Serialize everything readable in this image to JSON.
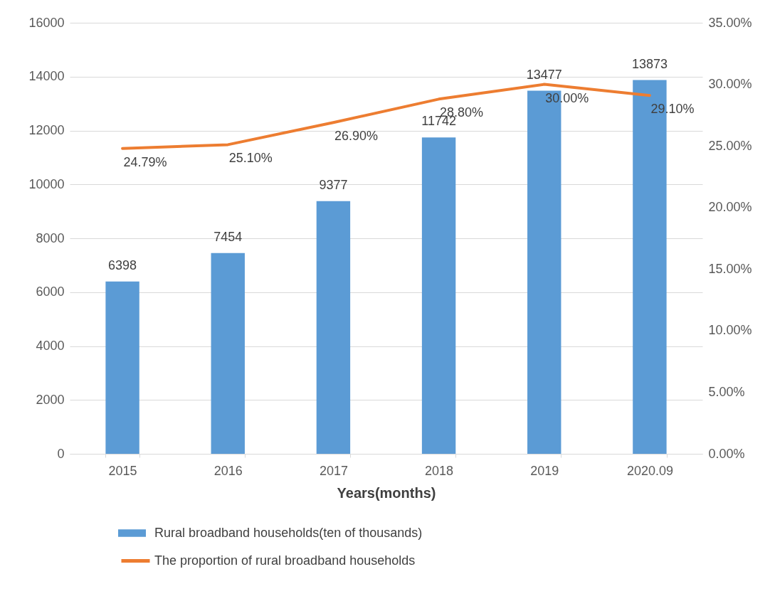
{
  "chart_data": {
    "type": "bar",
    "xlabel": "Years(months)",
    "categories": [
      "2015",
      "2016",
      "2017",
      "2018",
      "2019",
      "2020.09"
    ],
    "series": [
      {
        "name": "Rural broadband households(ten of thousands)",
        "color": "#5b9bd5",
        "values": [
          6398,
          7454,
          9377,
          11742,
          13477,
          13873
        ],
        "value_labels": [
          "6398",
          "7454",
          "9377",
          "11742",
          "13477",
          "13873"
        ]
      },
      {
        "name": "The proportion of rural broadband households",
        "type": "line",
        "axis": "y2",
        "color": "#ed7d31",
        "values": [
          24.79,
          25.1,
          26.9,
          28.8,
          30.0,
          29.1
        ],
        "value_labels": [
          "24.79%",
          "25.10%",
          "26.90%",
          "28.80%",
          "30.00%",
          "29.10%"
        ]
      }
    ],
    "ylim": [
      0,
      16000
    ],
    "yticks": [
      0,
      2000,
      4000,
      6000,
      8000,
      10000,
      12000,
      14000,
      16000
    ],
    "y2lim": [
      0,
      35
    ],
    "y2ticks": [
      {
        "value": 0,
        "label": "0.00%"
      },
      {
        "value": 5,
        "label": "5.00%"
      },
      {
        "value": 10,
        "label": "10.00%"
      },
      {
        "value": 15,
        "label": "15.00%"
      },
      {
        "value": 20,
        "label": "20.00%"
      },
      {
        "value": 25,
        "label": "25.00%"
      },
      {
        "value": 30,
        "label": "30.00%"
      },
      {
        "value": 35,
        "label": "35.00%"
      }
    ],
    "grid": "y",
    "legend": "bottom"
  }
}
